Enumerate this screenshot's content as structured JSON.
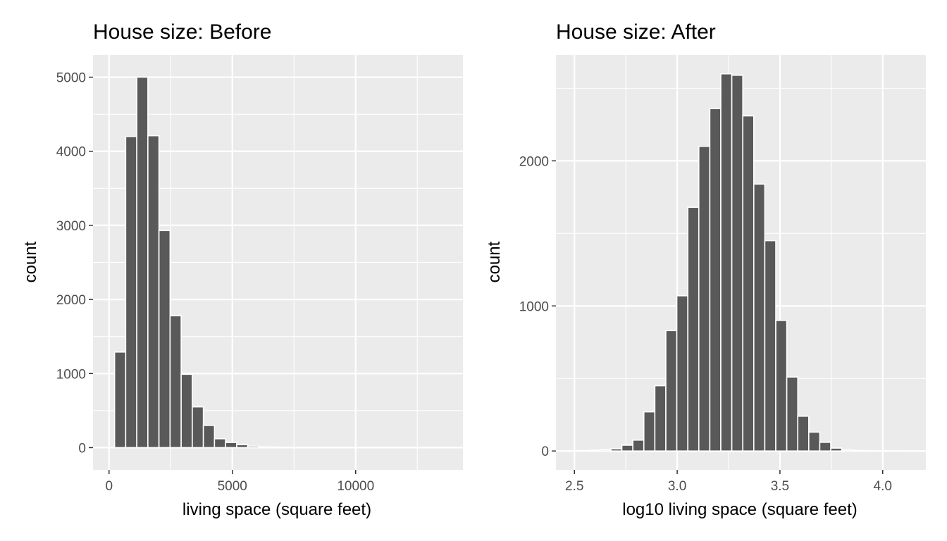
{
  "chart_data": [
    {
      "type": "bar",
      "title": "House size: Before",
      "xlabel": "living space (square feet)",
      "ylabel": "count",
      "xlim": [
        -650,
        14350
      ],
      "ylim": [
        -300,
        5300
      ],
      "x_ticks": [
        0,
        5000,
        10000
      ],
      "y_ticks": [
        0,
        1000,
        2000,
        3000,
        4000,
        5000
      ],
      "x_tick_labels": [
        "0",
        "5000",
        "10000"
      ],
      "y_tick_labels": [
        "0",
        "1000",
        "2000",
        "3000",
        "4000",
        "5000"
      ],
      "bin_width": 450,
      "bin_centers": [
        0,
        450,
        900,
        1350,
        1800,
        2250,
        2700,
        3150,
        3600,
        4050,
        4500,
        4950,
        5400,
        5850,
        6300,
        6750,
        7200,
        7650,
        8100,
        8550,
        9000,
        9450,
        9900,
        10350,
        10800,
        11250,
        11700,
        12150,
        12600,
        13050,
        13500
      ],
      "values": [
        0,
        1290,
        4200,
        5000,
        4210,
        2930,
        1780,
        990,
        550,
        300,
        120,
        70,
        40,
        20,
        10,
        8,
        5,
        4,
        3,
        2,
        2,
        1,
        1,
        1,
        0,
        0,
        1,
        0,
        0,
        0,
        1
      ],
      "grid": true,
      "bar_color": "#595959",
      "panel_color": "#ebebeb",
      "grid_color": "#ffffff"
    },
    {
      "type": "bar",
      "title": "House size: After",
      "xlabel": "log10 living space (square feet)",
      "ylabel": "count",
      "xlim": [
        2.41,
        4.21
      ],
      "ylim": [
        -130,
        2730
      ],
      "x_ticks": [
        2.5,
        3.0,
        3.5,
        4.0
      ],
      "y_ticks": [
        0,
        1000,
        2000
      ],
      "x_tick_labels": [
        "2.5",
        "3.0",
        "3.5",
        "4.0"
      ],
      "y_tick_labels": [
        "0",
        "1000",
        "2000"
      ],
      "bin_width": 0.0535,
      "bin_centers": [
        2.49,
        2.5435,
        2.597,
        2.6505,
        2.704,
        2.7575,
        2.811,
        2.8645,
        2.918,
        2.9715,
        3.025,
        3.0785,
        3.132,
        3.1855,
        3.239,
        3.2925,
        3.346,
        3.3995,
        3.453,
        3.5065,
        3.56,
        3.6135,
        3.667,
        3.7205,
        3.774,
        3.8275,
        3.881,
        3.9345,
        3.988,
        4.0415,
        4.095
      ],
      "values": [
        2,
        3,
        5,
        8,
        15,
        40,
        75,
        270,
        450,
        830,
        1070,
        1680,
        2100,
        2360,
        2600,
        2590,
        2310,
        1840,
        1450,
        900,
        510,
        240,
        130,
        60,
        20,
        8,
        4,
        2,
        1,
        1,
        1
      ],
      "grid": true,
      "bar_color": "#595959",
      "panel_color": "#ebebeb",
      "grid_color": "#ffffff"
    }
  ]
}
